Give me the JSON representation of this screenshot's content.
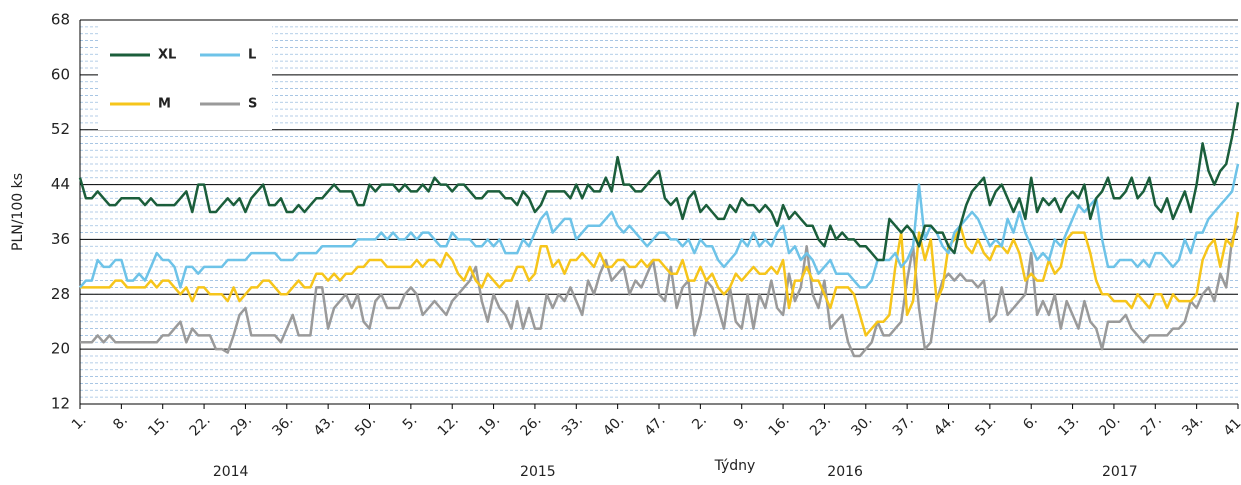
{
  "chart_data": {
    "type": "line",
    "y_label": "PLN/100 ks",
    "x_label": "Týdny",
    "year_labels": [
      "2014",
      "2015",
      "2016",
      "2017"
    ],
    "categories": [
      "1.",
      null,
      null,
      null,
      null,
      null,
      null,
      "8.",
      null,
      null,
      null,
      null,
      null,
      null,
      "15.",
      null,
      null,
      null,
      null,
      null,
      null,
      "22.",
      null,
      null,
      null,
      null,
      null,
      null,
      "29.",
      null,
      null,
      null,
      null,
      null,
      null,
      "36.",
      null,
      null,
      null,
      null,
      null,
      null,
      "43.",
      null,
      null,
      null,
      null,
      null,
      null,
      "50.",
      null,
      null,
      null,
      null,
      null,
      null,
      "5.",
      null,
      null,
      null,
      null,
      null,
      null,
      "12.",
      null,
      null,
      null,
      null,
      null,
      null,
      "19.",
      null,
      null,
      null,
      null,
      null,
      null,
      "26.",
      null,
      null,
      null,
      null,
      null,
      null,
      "33.",
      null,
      null,
      null,
      null,
      null,
      null,
      "40.",
      null,
      null,
      null,
      null,
      null,
      null,
      "47.",
      null,
      null,
      null,
      null,
      null,
      null,
      "2.",
      null,
      null,
      null,
      null,
      null,
      null,
      "9.",
      null,
      null,
      null,
      null,
      null,
      null,
      "16.",
      null,
      null,
      null,
      null,
      null,
      null,
      "23.",
      null,
      null,
      null,
      null,
      null,
      null,
      "30.",
      null,
      null,
      null,
      null,
      null,
      null,
      "37.",
      null,
      null,
      null,
      null,
      null,
      null,
      "44.",
      null,
      null,
      null,
      null,
      null,
      null,
      "51.",
      null,
      null,
      null,
      null,
      null,
      null,
      "6.",
      null,
      null,
      null,
      null,
      null,
      null,
      "13.",
      null,
      null,
      null,
      null,
      null,
      null,
      "20.",
      null,
      null,
      null,
      null,
      null,
      null,
      "27.",
      null,
      null,
      null,
      null,
      null,
      null,
      "34.",
      null,
      null,
      null,
      null,
      null,
      null,
      "41."
    ],
    "series": [
      {
        "name": "XL",
        "color": "#1b5e3b",
        "values": [
          45,
          42,
          42,
          43,
          42,
          41,
          41,
          42,
          42,
          42,
          42,
          41,
          42,
          41,
          41,
          41,
          41,
          42,
          43,
          40,
          44,
          44,
          40,
          40,
          41,
          42,
          41,
          42,
          40,
          42,
          43,
          44,
          41,
          41,
          42,
          40,
          40,
          41,
          40,
          41,
          42,
          42,
          43,
          44,
          43,
          43,
          43,
          41,
          41,
          44,
          43,
          44,
          44,
          44,
          43,
          44,
          43,
          43,
          44,
          43,
          45,
          44,
          44,
          43,
          44,
          44,
          43,
          42,
          42,
          43,
          43,
          43,
          42,
          42,
          41,
          43,
          42,
          40,
          41,
          43,
          43,
          43,
          43,
          42,
          44,
          42,
          44,
          43,
          43,
          45,
          43,
          48,
          44,
          44,
          43,
          43,
          44,
          45,
          46,
          42,
          41,
          42,
          39,
          42,
          43,
          40,
          41,
          40,
          39,
          39,
          41,
          40,
          42,
          41,
          41,
          40,
          41,
          40,
          38,
          41,
          39,
          40,
          39,
          38,
          38,
          36,
          35,
          38,
          36,
          37,
          36,
          36,
          35,
          35,
          34,
          33,
          33,
          39,
          38,
          37,
          38,
          37,
          35,
          38,
          38,
          37,
          37,
          35,
          34,
          38,
          41,
          43,
          44,
          45,
          41,
          43,
          44,
          42,
          40,
          42,
          39,
          45,
          40,
          42,
          41,
          42,
          40,
          42,
          43,
          42,
          44,
          39,
          42,
          43,
          45,
          42,
          42,
          43,
          45,
          42,
          43,
          45,
          41,
          40,
          42,
          39,
          41,
          43,
          40,
          44,
          50,
          46,
          44,
          46,
          47,
          51,
          56
        ]
      },
      {
        "name": "L",
        "color": "#6ec3e8",
        "values": [
          29,
          30,
          30,
          33,
          32,
          32,
          33,
          33,
          30,
          30,
          31,
          30,
          32,
          34,
          33,
          33,
          32,
          29,
          32,
          32,
          31,
          32,
          32,
          32,
          32,
          33,
          33,
          33,
          33,
          34,
          34,
          34,
          34,
          34,
          33,
          33,
          33,
          34,
          34,
          34,
          34,
          35,
          35,
          35,
          35,
          35,
          35,
          36,
          36,
          36,
          36,
          37,
          36,
          37,
          36,
          36,
          37,
          36,
          37,
          37,
          36,
          35,
          35,
          37,
          36,
          36,
          36,
          35,
          35,
          36,
          35,
          36,
          34,
          34,
          34,
          36,
          35,
          37,
          39,
          40,
          37,
          38,
          39,
          39,
          36,
          37,
          38,
          38,
          38,
          39,
          40,
          38,
          37,
          38,
          37,
          36,
          35,
          36,
          37,
          37,
          36,
          36,
          35,
          36,
          34,
          36,
          35,
          35,
          33,
          32,
          33,
          34,
          36,
          35,
          37,
          35,
          36,
          35,
          37,
          38,
          34,
          35,
          33,
          34,
          33,
          31,
          32,
          33,
          31,
          31,
          31,
          30,
          29,
          29,
          30,
          33,
          33,
          33,
          34,
          32,
          33,
          35,
          44,
          36,
          38,
          37,
          35,
          34,
          37,
          38,
          39,
          40,
          39,
          37,
          35,
          36,
          35,
          39,
          37,
          40,
          37,
          35,
          33,
          34,
          33,
          36,
          35,
          37,
          39,
          41,
          40,
          41,
          42,
          36,
          32,
          32,
          33,
          33,
          33,
          32,
          33,
          32,
          34,
          34,
          33,
          32,
          33,
          36,
          34,
          37,
          37,
          39,
          40,
          41,
          42,
          43,
          47
        ]
      },
      {
        "name": "M",
        "color": "#f6c51b",
        "values": [
          29,
          29,
          29,
          29,
          29,
          29,
          30,
          30,
          29,
          29,
          29,
          29,
          30,
          29,
          30,
          30,
          29,
          28,
          29,
          27,
          29,
          29,
          28,
          28,
          28,
          27,
          29,
          27,
          28,
          29,
          29,
          30,
          30,
          29,
          28,
          28,
          29,
          30,
          29,
          29,
          31,
          31,
          30,
          31,
          30,
          31,
          31,
          32,
          32,
          33,
          33,
          33,
          32,
          32,
          32,
          32,
          32,
          33,
          32,
          33,
          33,
          32,
          34,
          33,
          31,
          30,
          32,
          30,
          29,
          31,
          30,
          29,
          30,
          30,
          32,
          32,
          30,
          31,
          35,
          35,
          32,
          33,
          31,
          33,
          33,
          34,
          33,
          32,
          34,
          32,
          32,
          33,
          33,
          32,
          32,
          33,
          32,
          33,
          33,
          32,
          31,
          31,
          33,
          30,
          30,
          32,
          30,
          31,
          29,
          28,
          29,
          31,
          30,
          31,
          32,
          31,
          31,
          32,
          31,
          33,
          26,
          30,
          30,
          32,
          30,
          30,
          28,
          26,
          29,
          29,
          29,
          28,
          25,
          22,
          23,
          24,
          24,
          25,
          32,
          37,
          25,
          27,
          37,
          33,
          36,
          27,
          29,
          35,
          36,
          38,
          35,
          34,
          36,
          34,
          33,
          35,
          35,
          34,
          36,
          34,
          30,
          31,
          30,
          30,
          33,
          31,
          32,
          36,
          37,
          37,
          37,
          34,
          30,
          28,
          28,
          27,
          27,
          27,
          26,
          28,
          27,
          26,
          28,
          28,
          26,
          28,
          27,
          27,
          27,
          28,
          33,
          35,
          36,
          32,
          36,
          35,
          40
        ]
      },
      {
        "name": "S",
        "color": "#9a9a9a",
        "values": [
          21,
          21,
          21,
          22,
          21,
          22,
          21,
          21,
          21,
          21,
          21,
          21,
          21,
          21,
          22,
          22,
          23,
          24,
          21,
          23,
          22,
          22,
          22,
          20,
          20,
          19.5,
          22,
          25,
          26,
          22,
          22,
          22,
          22,
          22,
          21,
          23,
          25,
          22,
          22,
          22,
          29,
          29,
          23,
          26,
          27,
          28,
          26,
          28,
          24,
          23,
          27,
          28,
          26,
          26,
          26,
          28,
          29,
          28,
          25,
          26,
          27,
          26,
          25,
          27,
          28,
          29,
          30,
          32,
          27,
          24,
          28,
          26,
          25,
          23,
          27,
          23,
          26,
          23,
          23,
          28,
          26,
          28,
          27,
          29,
          27,
          25,
          30,
          28,
          31,
          33,
          30,
          31,
          32,
          28,
          30,
          29,
          31,
          33,
          28,
          27,
          32,
          26,
          29,
          30,
          22,
          25,
          30,
          29,
          26,
          23,
          29,
          24,
          23,
          28,
          23,
          28,
          26,
          30,
          26,
          25,
          31,
          27,
          29,
          35,
          28,
          26,
          30,
          23,
          24,
          25,
          21,
          19,
          19,
          20,
          21,
          24,
          22,
          22,
          23,
          24,
          30,
          35,
          26,
          20,
          21,
          27,
          30,
          31,
          30,
          31,
          30,
          30,
          29,
          30,
          24,
          25,
          29,
          25,
          26,
          27,
          28,
          34,
          25,
          27,
          25,
          28,
          23,
          27,
          25,
          23,
          27,
          24,
          23,
          20,
          24,
          24,
          24,
          25,
          23,
          22,
          21,
          22,
          22,
          22,
          22,
          23,
          23,
          24,
          27,
          26,
          28,
          29,
          27,
          31,
          29,
          36,
          38
        ]
      }
    ],
    "ylim": [
      12,
      68
    ],
    "yticks": [
      12,
      20,
      28,
      36,
      44,
      52,
      60,
      68
    ],
    "grid": true,
    "minor_grid": true,
    "legend": "upper-left"
  }
}
